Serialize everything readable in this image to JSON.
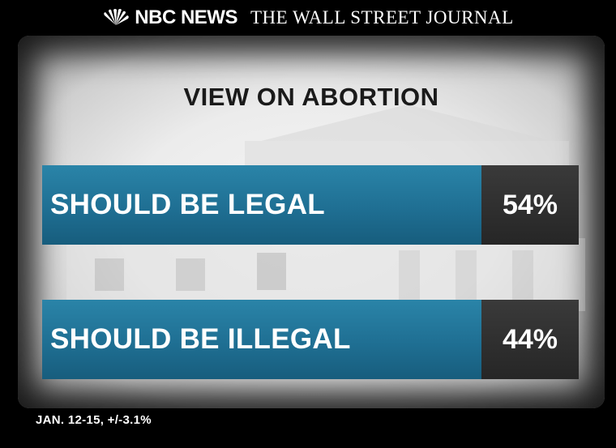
{
  "header": {
    "logo_nbc": "NBC NEWS",
    "logo_wsj": "THE WALL STREET JOURNAL"
  },
  "chart_data": {
    "type": "bar",
    "title": "VIEW ON ABORTION",
    "categories": [
      "SHOULD BE LEGAL",
      "SHOULD BE ILLEGAL"
    ],
    "values": [
      54,
      44
    ],
    "value_labels": [
      "54%",
      "44%"
    ],
    "unit": "%"
  },
  "footnote": "JAN. 12-15, +/-3.1%",
  "colors": {
    "bar_label_bg": "#1f6f93",
    "bar_value_bg": "#2b2b2b",
    "title_text": "#1a1a1a"
  }
}
